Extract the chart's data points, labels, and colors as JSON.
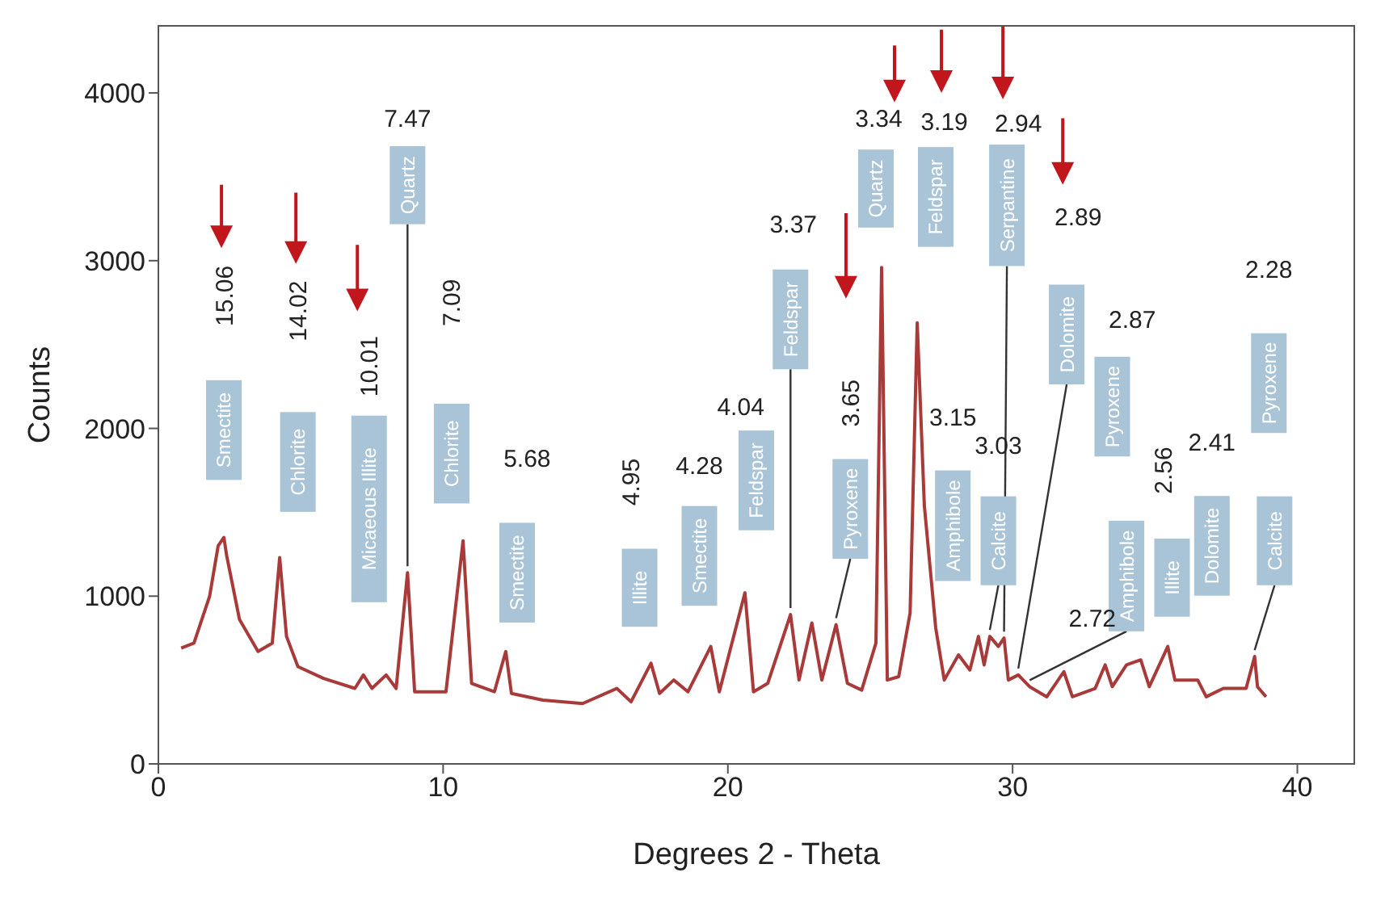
{
  "chart_data": {
    "type": "line",
    "xlabel": "Degrees  2 - Theta",
    "ylabel": "Counts",
    "xlim": [
      0,
      42
    ],
    "xticks": [
      0,
      10,
      20,
      30,
      40
    ],
    "ylim": [
      0,
      4400
    ],
    "yticks": [
      0,
      1000,
      2000,
      3000,
      4000
    ],
    "grid": false,
    "marker": "none",
    "line_style": "solid",
    "series": [
      {
        "color": "#a83a3a",
        "x": [
          0.8,
          1.25,
          1.8,
          2.1,
          2.3,
          2.4,
          2.85,
          3.5,
          4.0,
          4.26,
          4.5,
          4.9,
          5.8,
          6.9,
          7.2,
          7.5,
          8.0,
          8.35,
          8.75,
          9.0,
          10.1,
          10.7,
          11.0,
          11.8,
          12.2,
          12.4,
          13.5,
          14.9,
          16.1,
          16.6,
          17.3,
          17.6,
          18.1,
          18.6,
          19.4,
          19.7,
          20.6,
          20.9,
          21.4,
          22.2,
          22.5,
          22.95,
          23.3,
          23.8,
          24.2,
          24.7,
          25.2,
          25.4,
          25.6,
          26.0,
          26.4,
          26.65,
          26.9,
          27.3,
          27.6,
          28.1,
          28.5,
          28.8,
          29.0,
          29.2,
          29.5,
          29.7,
          29.85,
          30.2,
          30.6,
          31.2,
          31.8,
          32.1,
          32.9,
          33.25,
          33.5,
          34.0,
          34.5,
          34.8,
          35.45,
          35.7,
          36.5,
          36.8,
          37.4,
          38.2,
          38.5,
          38.6,
          38.9
        ],
        "values": [
          690,
          720,
          1000,
          1300,
          1350,
          1240,
          860,
          670,
          720,
          1230,
          760,
          580,
          510,
          450,
          530,
          450,
          530,
          450,
          1140,
          430,
          430,
          1330,
          480,
          430,
          670,
          420,
          380,
          360,
          450,
          370,
          600,
          420,
          500,
          430,
          700,
          430,
          1020,
          430,
          480,
          890,
          500,
          840,
          500,
          830,
          480,
          440,
          720,
          2960,
          500,
          520,
          900,
          2630,
          1540,
          810,
          500,
          650,
          560,
          760,
          590,
          760,
          700,
          750,
          500,
          530,
          460,
          400,
          550,
          400,
          450,
          590,
          460,
          590,
          620,
          460,
          700,
          500,
          500,
          400,
          450,
          450,
          640,
          460,
          400
        ]
      }
    ],
    "annotations": [
      "Smectite",
      "Chlorite",
      "Micaeous  Illite",
      {
        "text": "Quartz",
        "x": 8.75,
        "y": 1140
      },
      "Chlorite",
      "Smectite",
      "Illite",
      "Smectite",
      "Feldspar",
      {
        "text": "Feldspar",
        "x": 22.2,
        "y": 890
      },
      {
        "text": "Pyroxene",
        "x": 23.8,
        "y": 830
      },
      "Quartz",
      "Feldspar",
      "Amphibole",
      {
        "text": "Calcite",
        "x": 29.2,
        "y": 760
      },
      {
        "text": "Serpantine",
        "x": 29.7,
        "y": 750
      },
      {
        "text": "Dolomite",
        "x": 30.2,
        "y": 530
      },
      "Pyroxene",
      {
        "text": "Amphibole",
        "x": 30.6,
        "y": 460
      },
      "Illite",
      "Dolomite",
      "Pyroxene",
      {
        "text": "Calcite",
        "x": 38.5,
        "y": 640
      },
      "15.06",
      "14.02",
      "10.01",
      "7.47",
      "7.09",
      "5.68",
      "4.95",
      "4.28",
      "4.04",
      "3.37",
      "3.65",
      "3.34",
      "3.19",
      "2.94",
      "3.15",
      "3.03",
      "2.89",
      "2.87",
      "2.72",
      "2.56",
      "2.41",
      "2.28"
    ]
  }
}
